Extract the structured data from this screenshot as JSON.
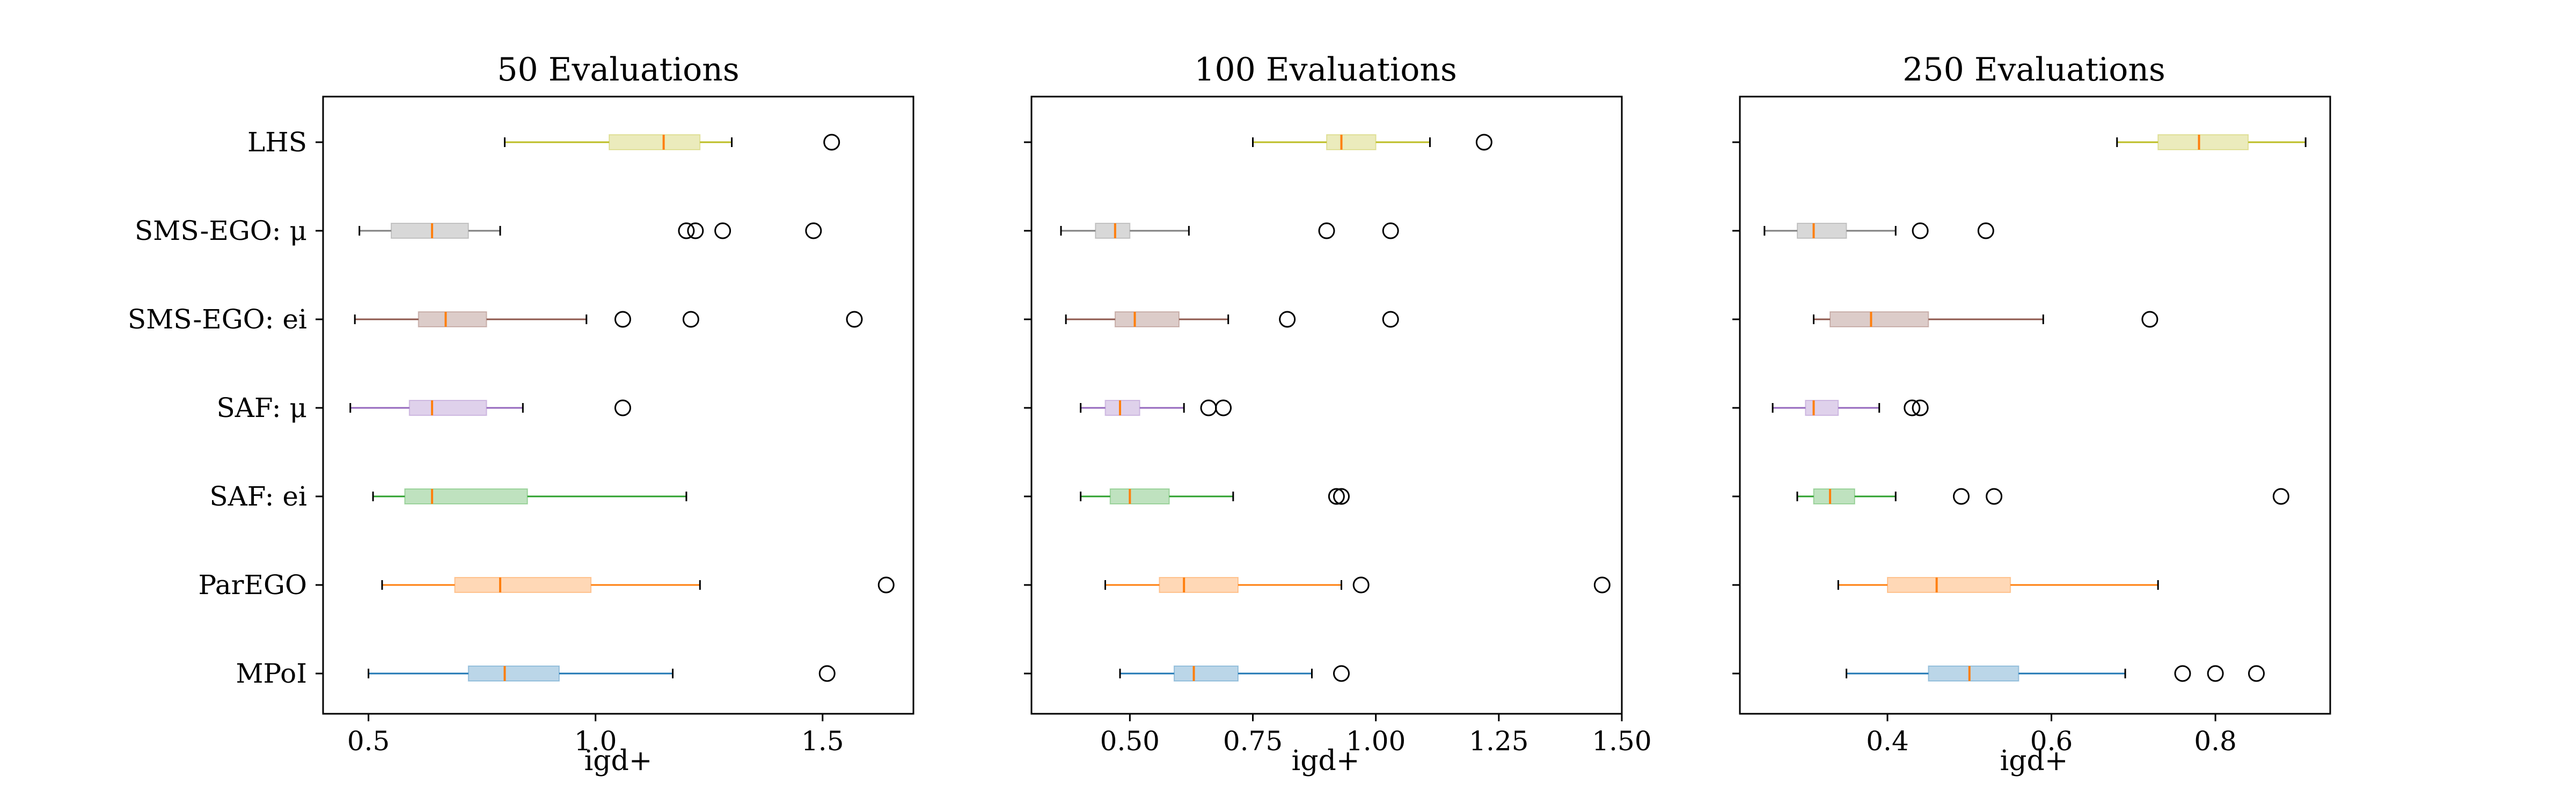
{
  "chart_data": [
    {
      "type": "boxplot",
      "orientation": "horizontal",
      "title": "50 Evaluations",
      "xlabel": "igd+",
      "ylabel": "",
      "xlim": [
        0.4,
        1.7
      ],
      "xticks": [
        {
          "value": 0.5,
          "label": "0.5"
        },
        {
          "value": 1.0,
          "label": "1.0"
        },
        {
          "value": 1.5,
          "label": "1.5"
        }
      ],
      "series": [
        {
          "category": "LHS",
          "color": "#bcbd22",
          "min": 0.8,
          "q1": 1.03,
          "median": 1.15,
          "q3": 1.23,
          "max": 1.3,
          "outliers": [
            1.52
          ]
        },
        {
          "category": "SMS-EGO: μ",
          "color": "#7f7f7f",
          "min": 0.48,
          "q1": 0.55,
          "median": 0.64,
          "q3": 0.72,
          "max": 0.79,
          "outliers": [
            1.2,
            1.22,
            1.28,
            1.48
          ]
        },
        {
          "category": "SMS-EGO: ei",
          "color": "#8c564b",
          "min": 0.47,
          "q1": 0.61,
          "median": 0.67,
          "q3": 0.76,
          "max": 0.98,
          "outliers": [
            1.06,
            1.21,
            1.57
          ]
        },
        {
          "category": "SAF: μ",
          "color": "#9467bd",
          "min": 0.46,
          "q1": 0.59,
          "median": 0.64,
          "q3": 0.76,
          "max": 0.84,
          "outliers": [
            1.06
          ]
        },
        {
          "category": "SAF: ei",
          "color": "#2ca02c",
          "min": 0.51,
          "q1": 0.58,
          "median": 0.64,
          "q3": 0.85,
          "max": 1.2,
          "outliers": []
        },
        {
          "category": "ParEGO",
          "color": "#ff7f0e",
          "min": 0.53,
          "q1": 0.69,
          "median": 0.79,
          "q3": 0.99,
          "max": 1.23,
          "outliers": [
            1.64
          ]
        },
        {
          "category": "MPoI",
          "color": "#1f77b4",
          "min": 0.5,
          "q1": 0.72,
          "median": 0.8,
          "q3": 0.92,
          "max": 1.17,
          "outliers": [
            1.51
          ]
        }
      ]
    },
    {
      "type": "boxplot",
      "orientation": "horizontal",
      "title": "100 Evaluations",
      "xlabel": "igd+",
      "ylabel": "",
      "xlim": [
        0.3,
        1.5
      ],
      "xticks": [
        {
          "value": 0.5,
          "label": "0.50"
        },
        {
          "value": 0.75,
          "label": "0.75"
        },
        {
          "value": 1.0,
          "label": "1.00"
        },
        {
          "value": 1.25,
          "label": "1.25"
        },
        {
          "value": 1.5,
          "label": "1.50"
        }
      ],
      "series": [
        {
          "category": "LHS",
          "color": "#bcbd22",
          "min": 0.75,
          "q1": 0.9,
          "median": 0.93,
          "q3": 1.0,
          "max": 1.11,
          "outliers": [
            1.22
          ]
        },
        {
          "category": "SMS-EGO: μ",
          "color": "#7f7f7f",
          "min": 0.36,
          "q1": 0.43,
          "median": 0.47,
          "q3": 0.5,
          "max": 0.62,
          "outliers": [
            0.9,
            1.03
          ]
        },
        {
          "category": "SMS-EGO: ei",
          "color": "#8c564b",
          "min": 0.37,
          "q1": 0.47,
          "median": 0.51,
          "q3": 0.6,
          "max": 0.7,
          "outliers": [
            0.82,
            1.03
          ]
        },
        {
          "category": "SAF: μ",
          "color": "#9467bd",
          "min": 0.4,
          "q1": 0.45,
          "median": 0.48,
          "q3": 0.52,
          "max": 0.61,
          "outliers": [
            0.66,
            0.69
          ]
        },
        {
          "category": "SAF: ei",
          "color": "#2ca02c",
          "min": 0.4,
          "q1": 0.46,
          "median": 0.5,
          "q3": 0.58,
          "max": 0.71,
          "outliers": [
            0.92,
            0.93
          ]
        },
        {
          "category": "ParEGO",
          "color": "#ff7f0e",
          "min": 0.45,
          "q1": 0.56,
          "median": 0.61,
          "q3": 0.72,
          "max": 0.93,
          "outliers": [
            0.97,
            1.46
          ]
        },
        {
          "category": "MPoI",
          "color": "#1f77b4",
          "min": 0.48,
          "q1": 0.59,
          "median": 0.63,
          "q3": 0.72,
          "max": 0.87,
          "outliers": [
            0.93
          ]
        }
      ]
    },
    {
      "type": "boxplot",
      "orientation": "horizontal",
      "title": "250 Evaluations",
      "xlabel": "igd+",
      "ylabel": "",
      "xlim": [
        0.22,
        0.94
      ],
      "xticks": [
        {
          "value": 0.4,
          "label": "0.4"
        },
        {
          "value": 0.6,
          "label": "0.6"
        },
        {
          "value": 0.8,
          "label": "0.8"
        }
      ],
      "series": [
        {
          "category": "LHS",
          "color": "#bcbd22",
          "min": 0.68,
          "q1": 0.73,
          "median": 0.78,
          "q3": 0.84,
          "max": 0.91,
          "outliers": []
        },
        {
          "category": "SMS-EGO: μ",
          "color": "#7f7f7f",
          "min": 0.25,
          "q1": 0.29,
          "median": 0.31,
          "q3": 0.35,
          "max": 0.41,
          "outliers": [
            0.44,
            0.52
          ]
        },
        {
          "category": "SMS-EGO: ei",
          "color": "#8c564b",
          "min": 0.31,
          "q1": 0.33,
          "median": 0.38,
          "q3": 0.45,
          "max": 0.59,
          "outliers": [
            0.72
          ]
        },
        {
          "category": "SAF: μ",
          "color": "#9467bd",
          "min": 0.26,
          "q1": 0.3,
          "median": 0.31,
          "q3": 0.34,
          "max": 0.39,
          "outliers": [
            0.43,
            0.44
          ]
        },
        {
          "category": "SAF: ei",
          "color": "#2ca02c",
          "min": 0.29,
          "q1": 0.31,
          "median": 0.33,
          "q3": 0.36,
          "max": 0.41,
          "outliers": [
            0.49,
            0.53,
            0.88
          ]
        },
        {
          "category": "ParEGO",
          "color": "#ff7f0e",
          "min": 0.34,
          "q1": 0.4,
          "median": 0.46,
          "q3": 0.55,
          "max": 0.73,
          "outliers": []
        },
        {
          "category": "MPoI",
          "color": "#1f77b4",
          "min": 0.35,
          "q1": 0.45,
          "median": 0.5,
          "q3": 0.56,
          "max": 0.69,
          "outliers": [
            0.76,
            0.8,
            0.85
          ]
        }
      ]
    }
  ],
  "style": {
    "median_color": "#ff7f0e",
    "axis_color": "#000000",
    "box_fill_opacity": 0.3
  }
}
